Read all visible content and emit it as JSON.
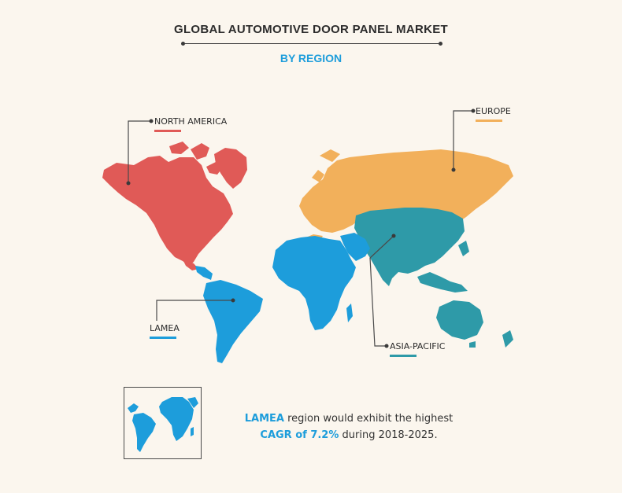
{
  "title": "GLOBAL AUTOMOTIVE DOOR PANEL MARKET",
  "subtitle": "BY REGION",
  "colors": {
    "north_america": "#e05a57",
    "europe": "#f2b05b",
    "asia_pacific": "#2e9aa8",
    "lamea": "#1d9ddb",
    "subtitle": "#1d9ddb",
    "text": "#2b2b2b"
  },
  "regions": [
    {
      "key": "north_america",
      "label": "NORTH AMERICA"
    },
    {
      "key": "europe",
      "label": "EUROPE"
    },
    {
      "key": "lamea",
      "label": "LAMEA"
    },
    {
      "key": "asia_pacific",
      "label": "ASIA-PACIFIC"
    }
  ],
  "highlight": {
    "region": "LAMEA",
    "line1_rest": " region would exhibit the highest",
    "cagr": "CAGR of 7.2%",
    "line2_rest": " during 2018-2025."
  }
}
